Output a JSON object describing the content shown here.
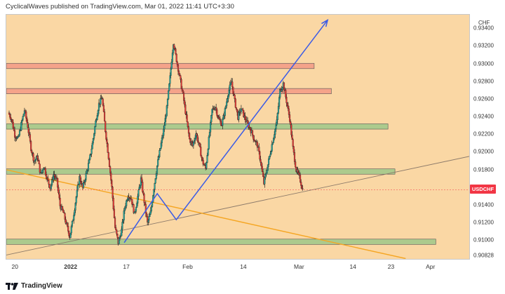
{
  "header": {
    "title": "CyclicalWaves published on TradingView.com, Mar 01, 2022 11:41 UTC+3:30"
  },
  "symbol": {
    "name": "USDCHF",
    "currency": "CHF",
    "badge_color": "#f23645"
  },
  "colors": {
    "background": "#fad7a4",
    "candle_up": "#26a69a",
    "candle_down": "#e53935",
    "zone_red": "#f4a089",
    "zone_green": "#a8c98c",
    "trend_blue": "#3b5be6",
    "trend_orange": "#f5a623",
    "trend_gray": "#8c7a6a"
  },
  "footer": {
    "brand": "TradingView",
    "logo_icon": "tradingview-logo-icon"
  },
  "chart_data": {
    "type": "candlestick",
    "title": "",
    "xlabel": "",
    "ylabel": "",
    "ylim": [
      0.9078,
      0.9356
    ],
    "price_ticks": [
      "0.93400",
      "0.93200",
      "0.93000",
      "0.92800",
      "0.92600",
      "0.92400",
      "0.92200",
      "0.92000",
      "0.91800",
      "0.91600",
      "0.91400",
      "0.91200",
      "0.91000",
      "0.90828"
    ],
    "time_ticks": [
      "20",
      "2022",
      "17",
      "Feb",
      "14",
      "Mar",
      "14",
      "23",
      "Apr"
    ],
    "close_path": [
      0.9245,
      0.9238,
      0.922,
      0.9215,
      0.9232,
      0.9248,
      0.923,
      0.9205,
      0.919,
      0.9195,
      0.9175,
      0.9185,
      0.917,
      0.916,
      0.9175,
      0.9168,
      0.914,
      0.9132,
      0.9118,
      0.9105,
      0.9125,
      0.915,
      0.9172,
      0.916,
      0.9175,
      0.919,
      0.921,
      0.9235,
      0.9255,
      0.9262,
      0.9225,
      0.9195,
      0.916,
      0.9115,
      0.9098,
      0.9112,
      0.9138,
      0.9152,
      0.9148,
      0.913,
      0.915,
      0.917,
      0.9145,
      0.912,
      0.9132,
      0.916,
      0.9185,
      0.9205,
      0.9225,
      0.925,
      0.9285,
      0.9325,
      0.9305,
      0.9285,
      0.9265,
      0.924,
      0.9215,
      0.9208,
      0.9222,
      0.9208,
      0.919,
      0.9182,
      0.9215,
      0.9248,
      0.9252,
      0.9238,
      0.9232,
      0.9248,
      0.9268,
      0.928,
      0.9258,
      0.924,
      0.925,
      0.924,
      0.9232,
      0.9225,
      0.9215,
      0.9208,
      0.919,
      0.9165,
      0.9182,
      0.92,
      0.9218,
      0.9235,
      0.927,
      0.9278,
      0.9258,
      0.9238,
      0.9205,
      0.918,
      0.9172,
      0.9158
    ],
    "zones": [
      {
        "kind": "resistance",
        "color": "#f4a089",
        "top": 0.9301,
        "bottom": 0.9295,
        "x_end": 0.663
      },
      {
        "kind": "resistance",
        "color": "#f4a089",
        "top": 0.92725,
        "bottom": 0.92665,
        "x_end": 0.7
      },
      {
        "kind": "support",
        "color": "#a8c98c",
        "top": 0.92325,
        "bottom": 0.92265,
        "x_end": 0.822
      },
      {
        "kind": "support",
        "color": "#a8c98c",
        "top": 0.91815,
        "bottom": 0.91755,
        "x_end": 0.837
      },
      {
        "kind": "support",
        "color": "#a8c98c",
        "top": 0.9102,
        "bottom": 0.9096,
        "x_end": 0.925
      }
    ],
    "trendlines": [
      {
        "color": "#8c7a6a",
        "x1": 0.0,
        "y1": 0.9084,
        "x2": 1.0,
        "y2": 0.9196
      },
      {
        "color": "#f5a623",
        "x1": 0.0,
        "y1": 0.91805,
        "x2": 0.86,
        "y2": 0.908
      }
    ],
    "wave_path": [
      {
        "x": 0.254,
        "y": 0.9098
      },
      {
        "x": 0.325,
        "y": 0.91535
      },
      {
        "x": 0.366,
        "y": 0.9124
      },
      {
        "x": 0.692,
        "y": 0.935
      }
    ]
  }
}
